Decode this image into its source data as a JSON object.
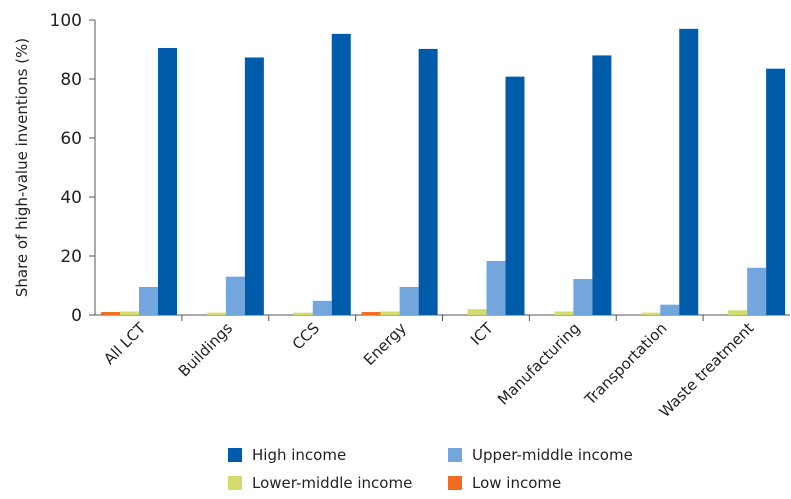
{
  "chart_data": {
    "type": "bar",
    "ylabel": "Share of high-value inventions (%)",
    "xlabel": "",
    "ylim": [
      0,
      100
    ],
    "yticks": [
      0,
      20,
      40,
      60,
      80,
      100
    ],
    "categories": [
      "All LCT",
      "Buildings",
      "CCS",
      "Energy",
      "ICT",
      "Manufacturing",
      "Transportation",
      "Waste treatment"
    ],
    "series": [
      {
        "name": "Low income",
        "color": "#f26b21",
        "values": [
          1,
          0,
          0,
          1,
          0,
          0,
          0,
          0
        ]
      },
      {
        "name": "Lower-middle income",
        "color": "#d4dc6f",
        "values": [
          1.2,
          0.8,
          0.8,
          1.2,
          2.0,
          1.2,
          0.8,
          1.6
        ]
      },
      {
        "name": "Upper-middle income",
        "color": "#72a6dc",
        "values": [
          9.5,
          13,
          4.8,
          9.5,
          18.3,
          12.2,
          3.5,
          16
        ]
      },
      {
        "name": "High income",
        "color": "#005bab",
        "values": [
          90.5,
          87.3,
          95.3,
          90.2,
          80.8,
          88,
          97,
          83.5
        ]
      }
    ],
    "legend": {
      "placement": "bottom",
      "order": [
        "High income",
        "Upper-middle income",
        "Lower-middle income",
        "Low income"
      ]
    }
  }
}
